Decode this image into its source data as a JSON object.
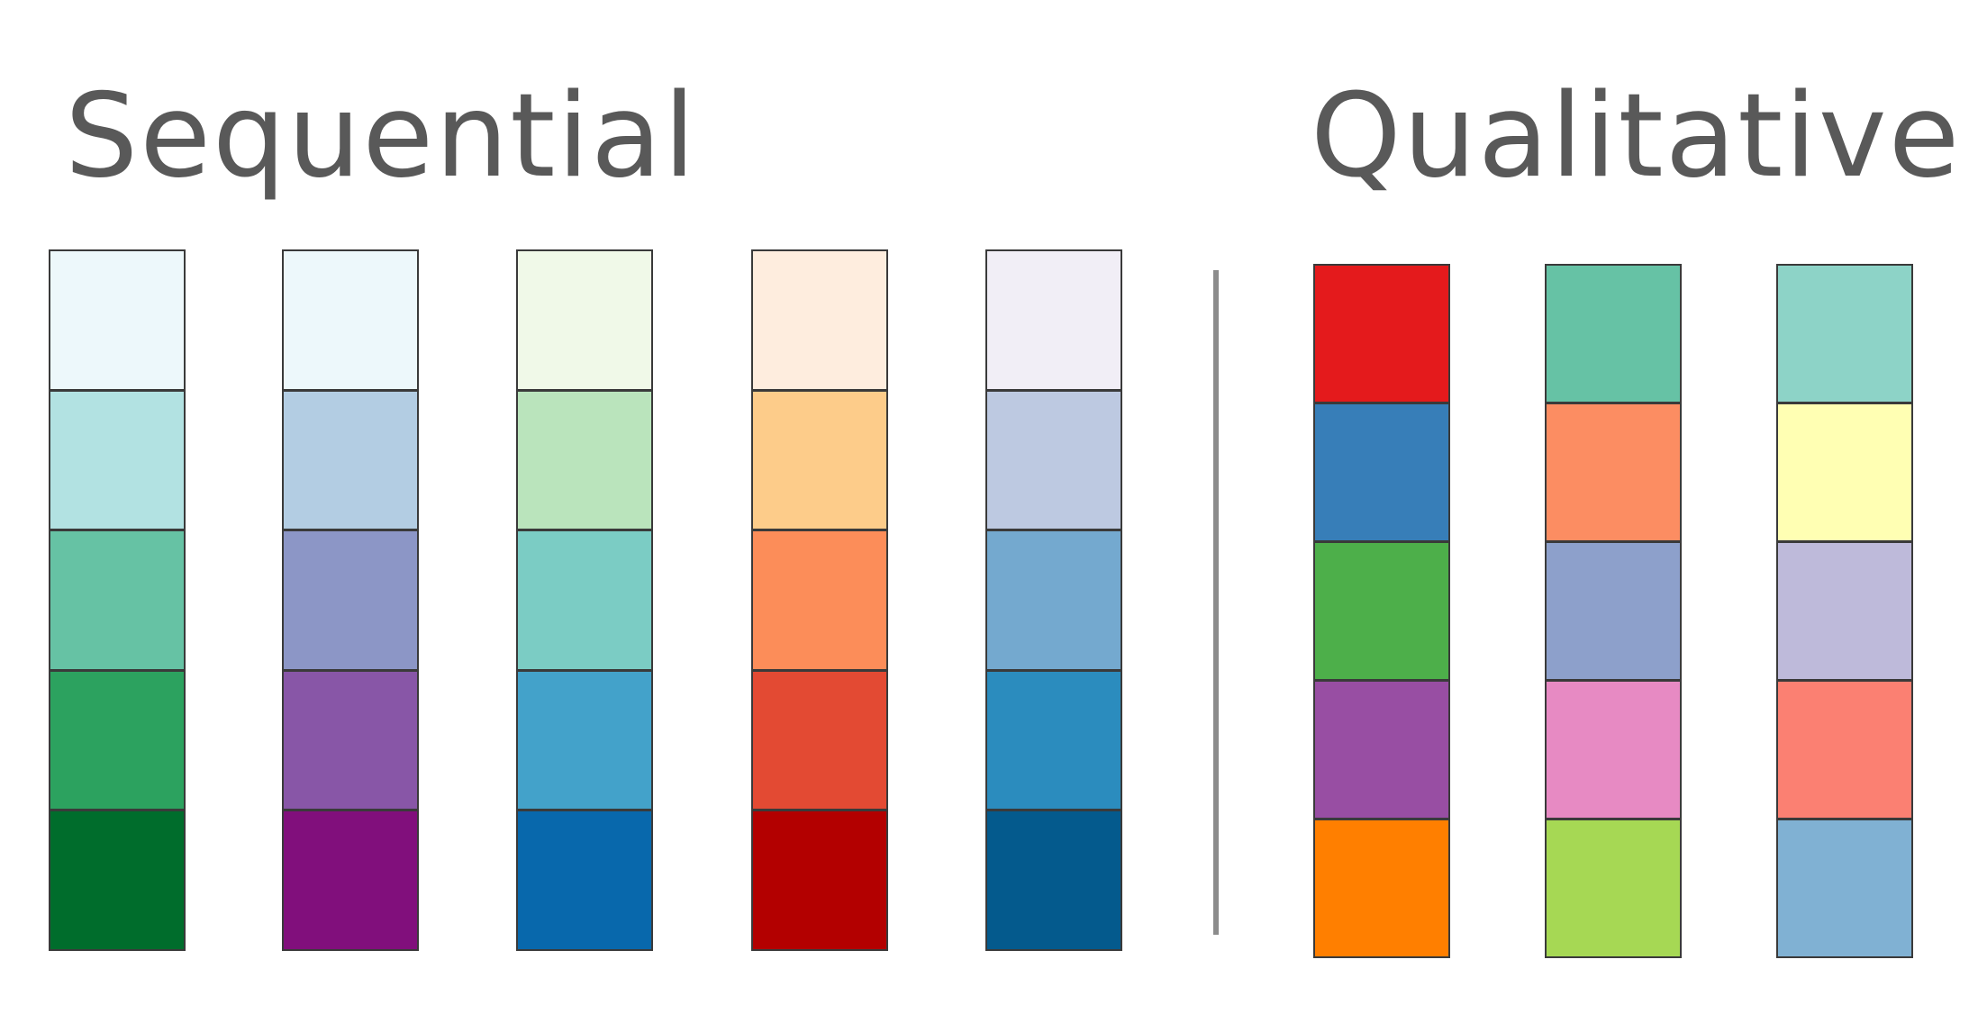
{
  "sequential": {
    "title": "Sequential",
    "palettes": [
      {
        "colors": [
          "#edf8fb",
          "#b2e2e2",
          "#66c2a4",
          "#2ca25f",
          "#006d2c"
        ]
      },
      {
        "colors": [
          "#edf8fb",
          "#b3cde3",
          "#8c96c6",
          "#8856a7",
          "#810f7c"
        ]
      },
      {
        "colors": [
          "#f0f9e8",
          "#bae4bc",
          "#7bccc4",
          "#43a2ca",
          "#0868ac"
        ]
      },
      {
        "colors": [
          "#feedde",
          "#fdcc8a",
          "#fc8d59",
          "#e34a33",
          "#b30000"
        ]
      },
      {
        "colors": [
          "#f1eef6",
          "#bdc9e1",
          "#74a9cf",
          "#2b8cbe",
          "#045a8d"
        ]
      }
    ]
  },
  "qualitative": {
    "title": "Qualitative",
    "palettes": [
      {
        "colors": [
          "#e41a1c",
          "#377eb8",
          "#4daf4a",
          "#984ea3",
          "#ff7f00"
        ]
      },
      {
        "colors": [
          "#66c2a5",
          "#fc8d62",
          "#8da0cb",
          "#e78ac3",
          "#a6d854"
        ]
      },
      {
        "colors": [
          "#8dd3c7",
          "#ffffb3",
          "#bebada",
          "#fb8072",
          "#80b1d3"
        ]
      }
    ]
  },
  "colors": {
    "heading": "#595959",
    "divider": "#8c8c8c",
    "swatch_border": "#3a3a3a"
  }
}
